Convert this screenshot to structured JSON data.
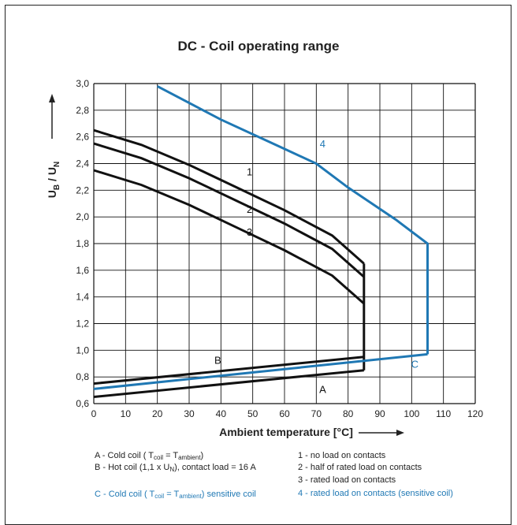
{
  "chart_data": {
    "type": "line",
    "title": "DC - Coil operating range",
    "xlabel": "Ambient temperature [°C]",
    "ylabel_main": "U",
    "ylabel_sub1": "B",
    "ylabel_mid": " / U",
    "ylabel_sub2": "N",
    "xlim": [
      0,
      120
    ],
    "ylim": [
      0.6,
      3.0
    ],
    "x_ticks": [
      "0",
      "10",
      "20",
      "30",
      "40",
      "50",
      "60",
      "70",
      "80",
      "90",
      "100",
      "110",
      "120"
    ],
    "y_ticks": [
      "0,6",
      "0,8",
      "1,0",
      "1,2",
      "1,4",
      "1,6",
      "1,8",
      "2,0",
      "2,2",
      "2,4",
      "2,6",
      "2,8",
      "3,0"
    ],
    "grid": true,
    "colors": {
      "black": "#111111",
      "blue": "#1f78b4"
    },
    "series": [
      {
        "name": "1",
        "color": "#111111",
        "label_at": [
          49,
          2.31
        ],
        "points": [
          [
            0,
            2.65
          ],
          [
            15,
            2.54
          ],
          [
            30,
            2.39
          ],
          [
            45,
            2.22
          ],
          [
            60,
            2.05
          ],
          [
            75,
            1.86
          ],
          [
            85,
            1.65
          ]
        ]
      },
      {
        "name": "2",
        "color": "#111111",
        "label_at": [
          49,
          2.03
        ],
        "points": [
          [
            0,
            2.55
          ],
          [
            15,
            2.44
          ],
          [
            30,
            2.29
          ],
          [
            45,
            2.12
          ],
          [
            60,
            1.95
          ],
          [
            75,
            1.76
          ],
          [
            85,
            1.55
          ]
        ]
      },
      {
        "name": "3",
        "color": "#111111",
        "label_at": [
          49,
          1.86
        ],
        "points": [
          [
            0,
            2.35
          ],
          [
            15,
            2.24
          ],
          [
            30,
            2.09
          ],
          [
            45,
            1.92
          ],
          [
            60,
            1.75
          ],
          [
            75,
            1.56
          ],
          [
            85,
            1.35
          ]
        ]
      },
      {
        "name": "B",
        "color": "#111111",
        "label_at": [
          39,
          0.9
        ],
        "points": [
          [
            0,
            0.75
          ],
          [
            85,
            0.95
          ]
        ]
      },
      {
        "name": "A",
        "color": "#111111",
        "label_at": [
          72,
          0.68
        ],
        "points": [
          [
            0,
            0.65
          ],
          [
            85,
            0.85
          ]
        ]
      },
      {
        "name": "boundary",
        "color": "#111111",
        "points": [
          [
            85,
            1.65
          ],
          [
            85,
            0.85
          ]
        ]
      },
      {
        "name": "4",
        "color": "#1f78b4",
        "label_at": [
          72,
          2.52
        ],
        "points": [
          [
            20,
            2.98
          ],
          [
            40,
            2.73
          ],
          [
            60,
            2.51
          ],
          [
            70,
            2.4
          ],
          [
            80,
            2.22
          ],
          [
            95,
            1.98
          ],
          [
            105,
            1.8
          ],
          [
            105,
            0.97
          ]
        ]
      },
      {
        "name": "C",
        "color": "#1f78b4",
        "label_at": [
          101,
          0.87
        ],
        "points": [
          [
            0,
            0.71
          ],
          [
            105,
            0.97
          ]
        ]
      }
    ]
  },
  "legend": {
    "a_prefix": "A - Cold coil ( T",
    "a_sub1": "coil",
    "a_mid": " = T",
    "a_sub2": "ambient",
    "a_suffix": ")",
    "b_prefix": "B - Hot coil (1,1 x U",
    "b_sub": "N",
    "b_suffix": "), contact load = 16 A",
    "c_prefix": "C - Cold coil ( T",
    "c_sub1": "coil",
    "c_mid": " = T",
    "c_sub2": "ambient",
    "c_suffix": ") sensitive coil",
    "l1": "1 - no load on contacts",
    "l2": "2 - half of rated load on contacts",
    "l3": "3 - rated load on contacts",
    "l4": "4 - rated load on contacts (sensitive coil)"
  }
}
